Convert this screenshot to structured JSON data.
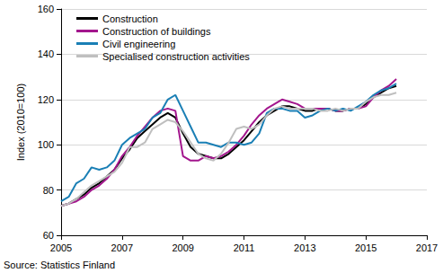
{
  "chart_data": {
    "type": "line",
    "ylabel": "Index (2010=100)",
    "source": "Source: Statistics Finland",
    "x": [
      2005,
      2005.25,
      2005.5,
      2005.75,
      2006,
      2006.25,
      2006.5,
      2006.75,
      2007,
      2007.25,
      2007.5,
      2007.75,
      2008,
      2008.25,
      2008.5,
      2008.75,
      2009,
      2009.25,
      2009.5,
      2009.75,
      2010,
      2010.25,
      2010.5,
      2010.75,
      2011,
      2011.25,
      2011.5,
      2011.75,
      2012,
      2012.25,
      2012.5,
      2012.75,
      2013,
      2013.25,
      2013.5,
      2013.75,
      2014,
      2014.25,
      2014.5,
      2014.75,
      2015,
      2015.25,
      2015.5,
      2015.75,
      2016
    ],
    "series": [
      {
        "name": "Construction",
        "color": "#000000",
        "values": [
          73,
          74,
          76,
          78,
          81,
          83,
          86,
          89,
          94,
          98,
          103,
          106,
          109,
          112,
          114,
          112,
          105,
          99,
          96,
          95,
          94,
          94,
          96,
          99,
          102,
          106,
          110,
          113,
          115,
          117,
          117,
          116,
          115,
          115,
          116,
          116,
          115,
          115,
          116,
          116,
          118,
          121,
          123,
          125,
          126
        ]
      },
      {
        "name": "Construction of buildings",
        "color": "#a3168d",
        "values": [
          73,
          74,
          75,
          77,
          80,
          82,
          85,
          89,
          95,
          99,
          104,
          108,
          112,
          115,
          116,
          115,
          95,
          93,
          93,
          95,
          94,
          95,
          97,
          100,
          104,
          109,
          113,
          116,
          118,
          120,
          119,
          118,
          116,
          116,
          116,
          116,
          115,
          115,
          116,
          116,
          117,
          121,
          124,
          126,
          129
        ]
      },
      {
        "name": "Civil engineering",
        "color": "#1a7fb5",
        "values": [
          75,
          77,
          83,
          85,
          90,
          89,
          90,
          93,
          100,
          103,
          105,
          107,
          112,
          114,
          120,
          122,
          115,
          108,
          101,
          101,
          100,
          99,
          101,
          101,
          100,
          101,
          105,
          114,
          116,
          116,
          115,
          115,
          112,
          113,
          115,
          116,
          115,
          116,
          115,
          117,
          119,
          122,
          124,
          125,
          127
        ]
      },
      {
        "name": "Specialised construction activities",
        "color": "#bfbfbf",
        "values": [
          73,
          74,
          76,
          79,
          82,
          84,
          86,
          88,
          92,
          99,
          99,
          101,
          107,
          109,
          111,
          110,
          106,
          101,
          96,
          94,
          93,
          96,
          101,
          107,
          108,
          107,
          109,
          113,
          116,
          117,
          116,
          116,
          116,
          116,
          115,
          115,
          116,
          115,
          116,
          116,
          119,
          121,
          122,
          122,
          123
        ]
      }
    ],
    "xlim": [
      2005,
      2017
    ],
    "xticks": [
      2005,
      2007,
      2009,
      2011,
      2013,
      2015,
      2017
    ],
    "ylim": [
      60,
      160
    ],
    "yticks": [
      60,
      80,
      100,
      120,
      140,
      160
    ],
    "grid": true,
    "legend": "top-left"
  }
}
